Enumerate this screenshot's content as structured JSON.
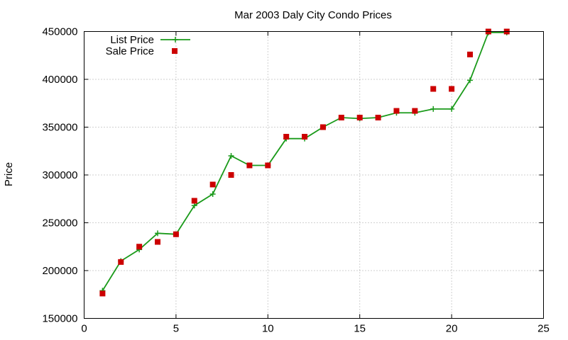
{
  "chart_data": {
    "type": "line",
    "title": "Mar 2003 Daly City Condo Prices",
    "xlabel": "",
    "ylabel": "Price",
    "xlim": [
      0,
      25
    ],
    "ylim": [
      150000,
      450000
    ],
    "xticks": [
      "0",
      "5",
      "10",
      "15",
      "20",
      "25"
    ],
    "yticks": [
      "150000",
      "200000",
      "250000",
      "300000",
      "350000",
      "400000",
      "450000"
    ],
    "xtick_values": [
      0,
      5,
      10,
      15,
      20,
      25
    ],
    "ytick_values": [
      150000,
      200000,
      250000,
      300000,
      350000,
      400000,
      450000
    ],
    "grid": true,
    "legend_position": "top-left",
    "series": [
      {
        "name": "List Price",
        "style": "line-plus",
        "color": "#1a9a1a",
        "x": [
          1,
          2,
          3,
          4,
          5,
          6,
          7,
          8,
          9,
          10,
          11,
          12,
          13,
          14,
          15,
          16,
          17,
          18,
          19,
          20,
          21,
          22,
          23
        ],
        "y": [
          179000,
          210000,
          222000,
          239000,
          238000,
          268000,
          280000,
          320000,
          310000,
          310000,
          338000,
          338000,
          350000,
          360000,
          359000,
          360000,
          365000,
          365000,
          369000,
          369000,
          399000,
          449000,
          449000
        ]
      },
      {
        "name": "Sale Price",
        "style": "square-marker",
        "color": "#cc0000",
        "x": [
          1,
          2,
          3,
          4,
          5,
          6,
          7,
          8,
          9,
          10,
          11,
          12,
          13,
          14,
          15,
          16,
          17,
          18,
          19,
          20,
          21,
          22,
          23
        ],
        "y": [
          176000,
          209000,
          225000,
          230000,
          238000,
          273000,
          290000,
          300000,
          310000,
          310000,
          340000,
          340000,
          350000,
          360000,
          360000,
          360000,
          367000,
          367000,
          390000,
          390000,
          426000,
          450000,
          450000
        ]
      }
    ]
  }
}
